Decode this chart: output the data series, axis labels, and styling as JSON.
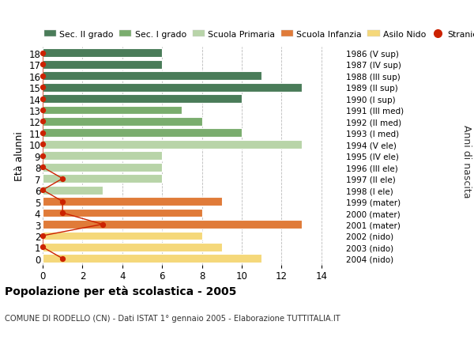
{
  "ages": [
    18,
    17,
    16,
    15,
    14,
    13,
    12,
    11,
    10,
    9,
    8,
    7,
    6,
    5,
    4,
    3,
    2,
    1,
    0
  ],
  "anni": [
    "1986 (V sup)",
    "1987 (IV sup)",
    "1988 (III sup)",
    "1989 (II sup)",
    "1990 (I sup)",
    "1991 (III med)",
    "1992 (II med)",
    "1993 (I med)",
    "1994 (V ele)",
    "1995 (IV ele)",
    "1996 (III ele)",
    "1997 (II ele)",
    "1998 (I ele)",
    "1999 (mater)",
    "2000 (mater)",
    "2001 (mater)",
    "2002 (nido)",
    "2003 (nido)",
    "2004 (nido)"
  ],
  "bar_values": [
    6,
    6,
    11,
    13,
    10,
    7,
    8,
    10,
    13,
    6,
    6,
    6,
    3,
    9,
    8,
    13,
    8,
    9,
    11
  ],
  "bar_colors": [
    "#4a7c59",
    "#4a7c59",
    "#4a7c59",
    "#4a7c59",
    "#4a7c59",
    "#7aad6e",
    "#7aad6e",
    "#7aad6e",
    "#b8d4a8",
    "#b8d4a8",
    "#b8d4a8",
    "#b8d4a8",
    "#b8d4a8",
    "#e07b39",
    "#e07b39",
    "#e07b39",
    "#f5d87a",
    "#f5d87a",
    "#f5d87a"
  ],
  "stranieri_x": [
    0,
    0,
    0,
    0,
    0,
    0,
    0,
    0,
    0,
    0,
    0,
    1,
    0,
    1,
    1,
    3,
    0,
    0,
    1
  ],
  "stranieri_color": "#cc2200",
  "legend_labels": [
    "Sec. II grado",
    "Sec. I grado",
    "Scuola Primaria",
    "Scuola Infanzia",
    "Asilo Nido",
    "Stranieri"
  ],
  "legend_colors": [
    "#4a7c59",
    "#7aad6e",
    "#b8d4a8",
    "#e07b39",
    "#f5d87a",
    "#cc2200"
  ],
  "ylabel": "Età alunni",
  "ylabel2": "Anni di nascita",
  "title": "Popolazione per età scolastica - 2005",
  "subtitle": "COMUNE DI RODELLO (CN) - Dati ISTAT 1° gennaio 2005 - Elaborazione TUTTITALIA.IT",
  "xlim": [
    0,
    15
  ],
  "xticks": [
    0,
    2,
    4,
    6,
    8,
    10,
    12,
    14
  ],
  "bg_color": "#ffffff",
  "bar_edge_color": "#ffffff",
  "grid_color": "#bbbbbb"
}
